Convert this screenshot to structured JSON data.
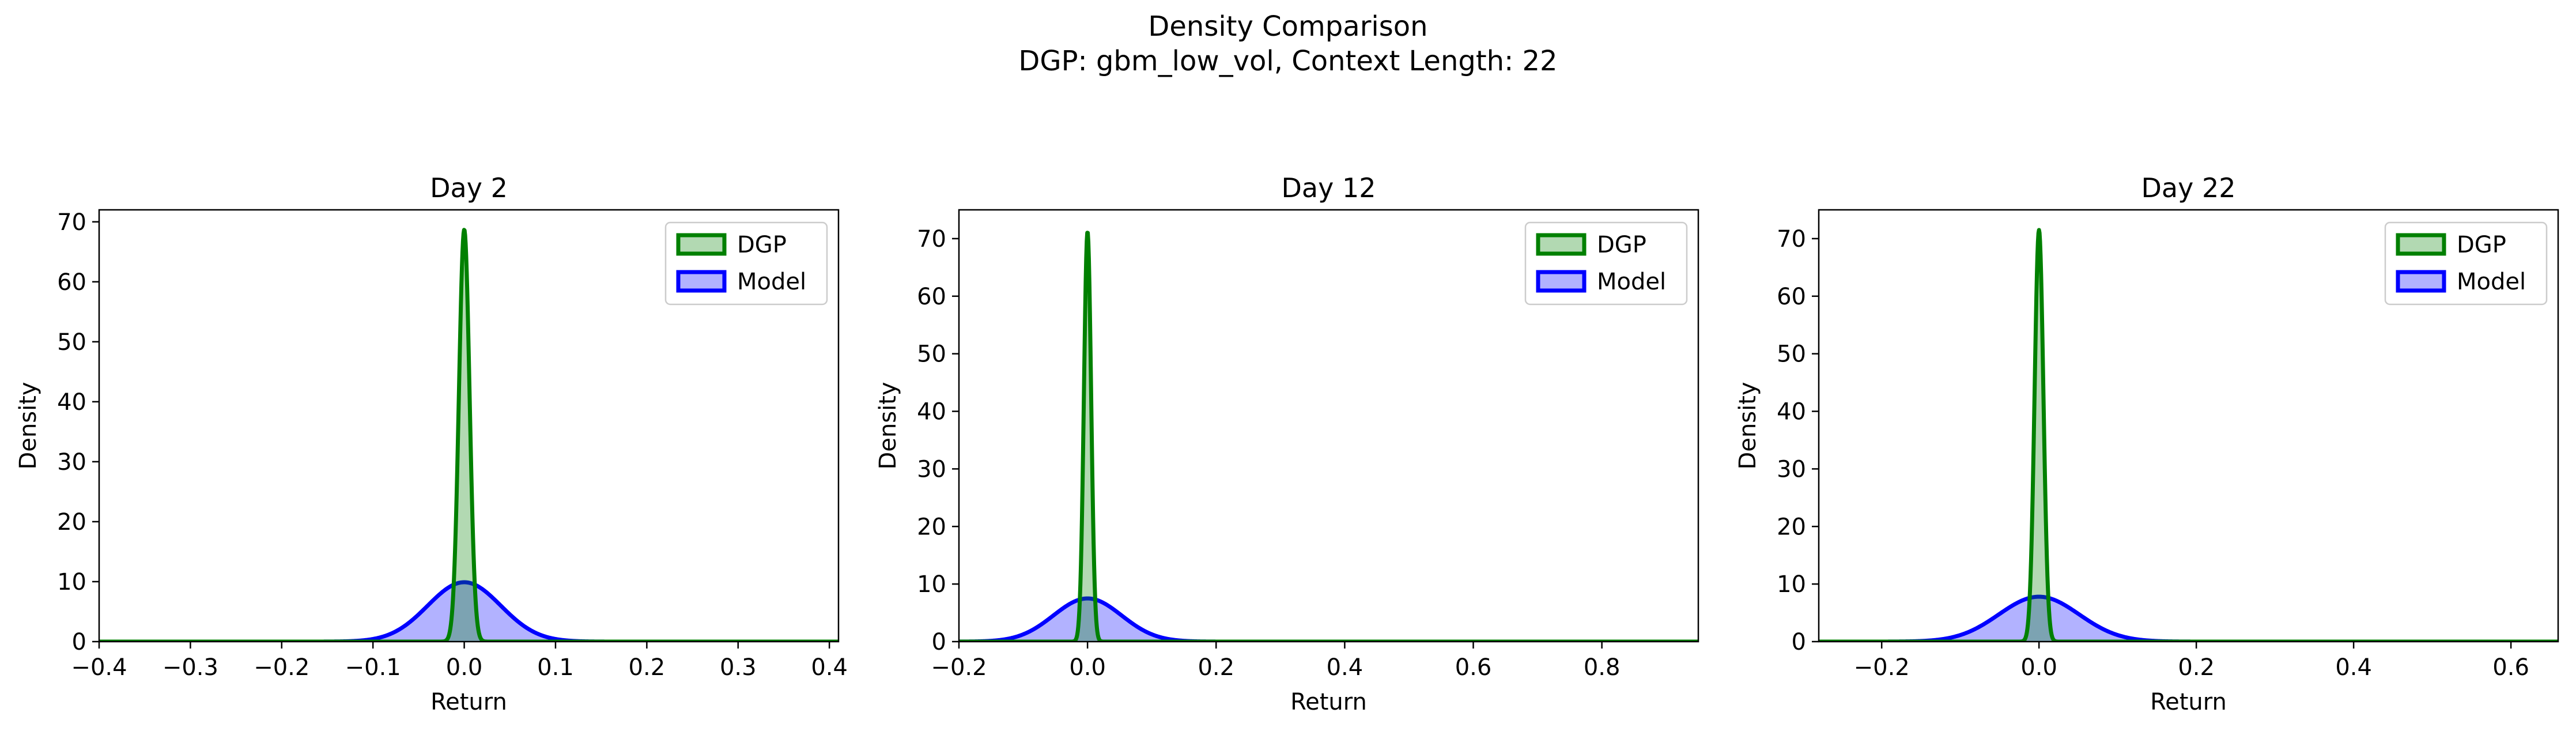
{
  "figure": {
    "title_line1": "Density Comparison",
    "title_line2": "DGP: gbm_low_vol, Context Length: 22"
  },
  "colors": {
    "dgp_line": "#008000",
    "dgp_fill": "#008000",
    "model_line": "#0000ff",
    "model_fill": "#0000ff",
    "axes": "#000000",
    "background": "#ffffff"
  },
  "chart_data": [
    {
      "type": "area",
      "title": "Day 2",
      "xlabel": "Return",
      "ylabel": "Density",
      "xlim": [
        -0.4,
        0.41
      ],
      "ylim": [
        0,
        72
      ],
      "xticks": [
        -0.4,
        -0.3,
        -0.2,
        -0.1,
        0.0,
        0.1,
        0.2,
        0.3,
        0.4
      ],
      "xtick_labels": [
        "−0.4",
        "−0.3",
        "−0.2",
        "−0.1",
        "0.0",
        "0.1",
        "0.2",
        "0.3",
        "0.4"
      ],
      "yticks": [
        0,
        10,
        20,
        30,
        40,
        50,
        60,
        70
      ],
      "ytick_labels": [
        "0",
        "10",
        "20",
        "30",
        "40",
        "50",
        "60",
        "70"
      ],
      "grid": false,
      "legend_position": "top-right",
      "series": [
        {
          "name": "DGP",
          "distribution": "normal",
          "mean": 0.0,
          "std": 0.0058,
          "peak_density": 68.7
        },
        {
          "name": "Model",
          "distribution": "normal",
          "mean": 0.0,
          "std": 0.04,
          "peak_density": 9.9
        }
      ]
    },
    {
      "type": "area",
      "title": "Day 12",
      "xlabel": "Return",
      "ylabel": "Density",
      "xlim": [
        -0.2,
        0.95
      ],
      "ylim": [
        0,
        75
      ],
      "xticks": [
        -0.2,
        0.0,
        0.2,
        0.4,
        0.6,
        0.8
      ],
      "xtick_labels": [
        "−0.2",
        "0.0",
        "0.2",
        "0.4",
        "0.6",
        "0.8"
      ],
      "yticks": [
        0,
        10,
        20,
        30,
        40,
        50,
        60,
        70
      ],
      "ytick_labels": [
        "0",
        "10",
        "20",
        "30",
        "40",
        "50",
        "60",
        "70"
      ],
      "grid": false,
      "legend_position": "top-right",
      "series": [
        {
          "name": "DGP",
          "distribution": "normal",
          "mean": 0.0,
          "std": 0.0056,
          "peak_density": 71.2
        },
        {
          "name": "Model",
          "distribution": "normal",
          "mean": 0.0,
          "std": 0.053,
          "peak_density": 7.5
        }
      ]
    },
    {
      "type": "area",
      "title": "Day 22",
      "xlabel": "Return",
      "ylabel": "Density",
      "xlim": [
        -0.28,
        0.66
      ],
      "ylim": [
        0,
        75
      ],
      "xticks": [
        -0.2,
        0.0,
        0.2,
        0.4,
        0.6
      ],
      "xtick_labels": [
        "−0.2",
        "0.0",
        "0.2",
        "0.4",
        "0.6"
      ],
      "yticks": [
        0,
        10,
        20,
        30,
        40,
        50,
        60,
        70
      ],
      "ytick_labels": [
        "0",
        "10",
        "20",
        "30",
        "40",
        "50",
        "60",
        "70"
      ],
      "grid": false,
      "legend_position": "top-right",
      "series": [
        {
          "name": "DGP",
          "distribution": "normal",
          "mean": 0.0,
          "std": 0.0056,
          "peak_density": 71.5
        },
        {
          "name": "Model",
          "distribution": "normal",
          "mean": 0.0,
          "std": 0.051,
          "peak_density": 7.8
        }
      ]
    }
  ]
}
